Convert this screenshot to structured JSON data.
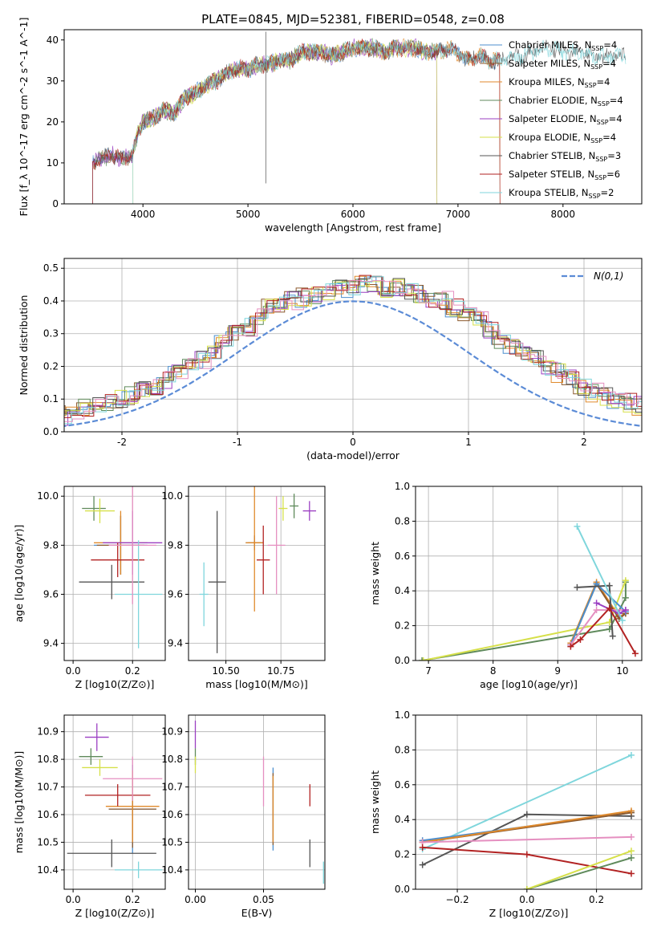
{
  "title": "PLATE=0845, MJD=52381, FIBERID=0548, z=0.08",
  "colors": {
    "Chabrier MILES": "#4c8fcf",
    "Salpeter MILES": "#8c5a2e",
    "Kroupa MILES": "#e08a2c",
    "Chabrier ELODIE": "#5f8a5b",
    "Salpeter ELODIE": "#9b3fc2",
    "Kroupa ELODIE": "#d6e04a",
    "Chabrier STELIB": "#555555",
    "Salpeter STELIB": "#b22222",
    "Kroupa STELIB": "#7fd6dc",
    "pink": "#e58fc0",
    "gauss": "#5b8bd6"
  },
  "chart_data": [
    {
      "type": "line",
      "xlabel": "wavelength [Angstrom, rest frame]",
      "ylabel": "Flux [f_λ 10^-17 erg cm^-2 s^-1 A^-1]",
      "xlim": [
        3250,
        8750
      ],
      "ylim": [
        0,
        42.5
      ],
      "xticks": [
        4000,
        5000,
        6000,
        7000,
        8000
      ],
      "yticks": [
        0,
        10,
        20,
        30,
        40
      ],
      "legend_position": "top-right",
      "legend": [
        {
          "label": "Chabrier MILES, N_SSP=4",
          "base": "Chabrier MILES, N",
          "sub": "SSP",
          "tail": "=4"
        },
        {
          "label": "Salpeter MILES, N_SSP=4",
          "base": "Salpeter MILES, N",
          "sub": "SSP",
          "tail": "=4"
        },
        {
          "label": "Kroupa MILES, N_SSP=4",
          "base": "Kroupa MILES, N",
          "sub": "SSP",
          "tail": "=4"
        },
        {
          "label": "Chabrier ELODIE, N_SSP=4",
          "base": "Chabrier ELODIE, N",
          "sub": "SSP",
          "tail": "=4"
        },
        {
          "label": "Salpeter ELODIE, N_SSP=4",
          "base": "Salpeter ELODIE, N",
          "sub": "SSP",
          "tail": "=4"
        },
        {
          "label": "Kroupa ELODIE, N_SSP=4",
          "base": "Kroupa ELODIE, N",
          "sub": "SSP",
          "tail": "=4"
        },
        {
          "label": "Chabrier STELIB, N_SSP=3",
          "base": "Chabrier STELIB, N",
          "sub": "SSP",
          "tail": "=3"
        },
        {
          "label": "Salpeter STELIB, N_SSP=6",
          "base": "Salpeter STELIB, N",
          "sub": "SSP",
          "tail": "=6"
        },
        {
          "label": "Kroupa STELIB, N_SSP=2",
          "base": "Kroupa STELIB, N",
          "sub": "SSP",
          "tail": "=2"
        }
      ],
      "spectrum": {
        "x": [
          3520,
          3600,
          3700,
          3800,
          3900,
          3950,
          4000,
          4100,
          4200,
          4300,
          4400,
          4500,
          4600,
          4700,
          4800,
          4900,
          5000,
          5100,
          5200,
          5300,
          5400,
          5500,
          5600,
          5700,
          5800,
          5900,
          6000,
          6100,
          6200,
          6300,
          6400,
          6500,
          6600,
          6700,
          6800,
          6900,
          7000,
          7100,
          7200,
          7300,
          7400,
          7500,
          7600,
          7700,
          7800,
          7900,
          8000,
          8100,
          8200,
          8300,
          8400,
          8500,
          8600
        ],
        "y": [
          10,
          11,
          12,
          11,
          12,
          17,
          20,
          21,
          23,
          22,
          26,
          27,
          29,
          30,
          32,
          33,
          33,
          34,
          34,
          35,
          35,
          37,
          37,
          37,
          36,
          37,
          38,
          38,
          38,
          37,
          38,
          38,
          38,
          37,
          37,
          38,
          37,
          35,
          36,
          35,
          35,
          36,
          36,
          37,
          38,
          38,
          37,
          37,
          37,
          36,
          36,
          36,
          36
        ]
      }
    },
    {
      "type": "histogram",
      "xlabel": "(data-model)/error",
      "ylabel": "Normed distribution",
      "xlim": [
        -2.5,
        2.5
      ],
      "ylim": [
        0,
        0.53
      ],
      "xticks": [
        -2,
        -1,
        0,
        1,
        2
      ],
      "yticks": [
        0.0,
        0.1,
        0.2,
        0.3,
        0.4,
        0.5
      ],
      "legend_position": "top-right",
      "gauss_label": "N(0,1)",
      "bin_width": 0.1,
      "profile": [
        0.02,
        0.02,
        0.03,
        0.04,
        0.04,
        0.05,
        0.06,
        0.07,
        0.08,
        0.09,
        0.1,
        0.11,
        0.13,
        0.14,
        0.16,
        0.18,
        0.2,
        0.22,
        0.25,
        0.28,
        0.3,
        0.32,
        0.35,
        0.38,
        0.39,
        0.4,
        0.41,
        0.42,
        0.43,
        0.44,
        0.44,
        0.45,
        0.45,
        0.44,
        0.44,
        0.43,
        0.42,
        0.41,
        0.4,
        0.38,
        0.36,
        0.34,
        0.31,
        0.28,
        0.26,
        0.24,
        0.22,
        0.2,
        0.18,
        0.16,
        0.14,
        0.12,
        0.11,
        0.1,
        0.09,
        0.08,
        0.07,
        0.06,
        0.05,
        0.04,
        0.03,
        0.03
      ],
      "gauss_peak": 0.399
    },
    {
      "type": "scatter",
      "name": "age-vs-metallicity",
      "xlabel": "Z [log10(Z/Z⊙)]",
      "ylabel": "age  [log10(age/yr)]",
      "xlim": [
        -0.03,
        0.31
      ],
      "ylim": [
        9.33,
        10.04
      ],
      "xticks": [
        0.0,
        0.2
      ],
      "xticklabels": [
        "0.0",
        "0.2"
      ],
      "yticks": [
        9.4,
        9.6,
        9.8,
        10.0
      ],
      "points": [
        {
          "series": "Chabrier MILES",
          "x": 0.16,
          "y": 9.8,
          "xerr": 0.09,
          "yerr": 0.12
        },
        {
          "series": "Salpeter MILES",
          "x": 0.16,
          "y": 9.8,
          "xerr": 0.08,
          "yerr": 0.12
        },
        {
          "series": "Kroupa MILES",
          "x": 0.16,
          "y": 9.81,
          "xerr": 0.09,
          "yerr": 0.13
        },
        {
          "series": "Chabrier ELODIE",
          "x": 0.07,
          "y": 9.95,
          "xerr": 0.04,
          "yerr": 0.05
        },
        {
          "series": "Salpeter ELODIE",
          "x": 0.2,
          "y": 9.81,
          "xerr": 0.1,
          "yerr": 0.13
        },
        {
          "series": "Kroupa ELODIE",
          "x": 0.09,
          "y": 9.94,
          "xerr": 0.05,
          "yerr": 0.05
        },
        {
          "series": "Chabrier STELIB",
          "x": 0.13,
          "y": 9.65,
          "xerr": 0.11,
          "yerr": 0.07
        },
        {
          "series": "Salpeter STELIB",
          "x": 0.15,
          "y": 9.74,
          "xerr": 0.09,
          "yerr": 0.07
        },
        {
          "series": "Kroupa STELIB",
          "x": 0.22,
          "y": 9.6,
          "xerr": 0.08,
          "yerr": 0.22
        },
        {
          "series": "pink",
          "x": 0.2,
          "y": 9.8,
          "xerr": 0.08,
          "yerr": 0.24
        }
      ]
    },
    {
      "type": "scatter",
      "name": "age-vs-mass",
      "xlabel": "mass [log10(M/M⊙)]",
      "ylabel": "",
      "xlim": [
        10.33,
        10.95
      ],
      "ylim": [
        9.33,
        10.04
      ],
      "xticks": [
        10.5,
        10.75
      ],
      "xticklabels": [
        "10.50",
        "10.75"
      ],
      "yticks": [
        9.4,
        9.6,
        9.8,
        10.0
      ],
      "points": [
        {
          "series": "Chabrier MILES",
          "x": 10.63,
          "y": 9.81,
          "xerr": 0.04,
          "yerr": 0.02
        },
        {
          "series": "Salpeter MILES",
          "x": 10.63,
          "y": 9.81,
          "xerr": 0.03,
          "yerr": 0.03
        },
        {
          "series": "Kroupa MILES",
          "x": 10.63,
          "y": 9.81,
          "xerr": 0.04,
          "yerr": 0.28
        },
        {
          "series": "Chabrier ELODIE",
          "x": 10.81,
          "y": 9.96,
          "xerr": 0.02,
          "yerr": 0.05
        },
        {
          "series": "Salpeter ELODIE",
          "x": 10.88,
          "y": 9.94,
          "xerr": 0.03,
          "yerr": 0.04
        },
        {
          "series": "Kroupa ELODIE",
          "x": 10.76,
          "y": 9.95,
          "xerr": 0.02,
          "yerr": 0.05
        },
        {
          "series": "Chabrier STELIB",
          "x": 10.46,
          "y": 9.65,
          "xerr": 0.04,
          "yerr": 0.29
        },
        {
          "series": "Salpeter STELIB",
          "x": 10.67,
          "y": 9.74,
          "xerr": 0.03,
          "yerr": 0.14
        },
        {
          "series": "Kroupa STELIB",
          "x": 10.4,
          "y": 9.6,
          "xerr": 0.02,
          "yerr": 0.13
        },
        {
          "series": "pink",
          "x": 10.73,
          "y": 9.8,
          "xerr": 0.04,
          "yerr": 0.2
        }
      ]
    },
    {
      "type": "line",
      "name": "mass-weight-vs-age",
      "xlabel": "age  [log10(age/yr)]",
      "ylabel": "mass weight",
      "xlim": [
        6.8,
        10.3
      ],
      "ylim": [
        0,
        1.0
      ],
      "xticks": [
        7,
        8,
        9,
        10
      ],
      "yticks": [
        0.0,
        0.2,
        0.4,
        0.6,
        0.8,
        1.0
      ],
      "series": [
        {
          "name": "Chabrier ELODIE",
          "x": [
            6.9,
            9.8,
            10.05,
            10.05
          ],
          "y": [
            0.0,
            0.18,
            0.36,
            0.45
          ]
        },
        {
          "name": "Kroupa ELODIE",
          "x": [
            6.92,
            9.8,
            10.05
          ],
          "y": [
            0.0,
            0.22,
            0.46
          ]
        },
        {
          "name": "Kroupa MILES",
          "x": [
            9.2,
            9.6,
            9.95,
            10.05
          ],
          "y": [
            0.1,
            0.45,
            0.25,
            0.27
          ]
        },
        {
          "name": "Salpeter MILES",
          "x": [
            9.2,
            9.6,
            9.95,
            10.05
          ],
          "y": [
            0.09,
            0.44,
            0.24,
            0.27
          ]
        },
        {
          "name": "Chabrier MILES",
          "x": [
            9.2,
            9.6,
            10.05
          ],
          "y": [
            0.09,
            0.44,
            0.28
          ]
        },
        {
          "name": "pink",
          "x": [
            9.2,
            9.6,
            10.05
          ],
          "y": [
            0.09,
            0.29,
            0.29
          ]
        },
        {
          "name": "Salpeter ELODIE",
          "x": [
            9.6,
            9.95,
            10.05
          ],
          "y": [
            0.33,
            0.27,
            0.29
          ]
        },
        {
          "name": "Chabrier STELIB",
          "x": [
            9.3,
            9.8,
            9.85
          ],
          "y": [
            0.42,
            0.43,
            0.14
          ]
        },
        {
          "name": "Salpeter STELIB",
          "x": [
            9.2,
            9.35,
            9.8,
            10.2
          ],
          "y": [
            0.08,
            0.12,
            0.3,
            0.04
          ]
        },
        {
          "name": "Kroupa STELIB",
          "x": [
            9.3,
            10.0
          ],
          "y": [
            0.77,
            0.23
          ]
        }
      ]
    },
    {
      "type": "scatter",
      "name": "mass-vs-metallicity",
      "xlabel": "Z [log10(Z/Z⊙)]",
      "ylabel": "mass [log10(M/M⊙)]",
      "xlim": [
        -0.03,
        0.31
      ],
      "ylim": [
        10.33,
        10.96
      ],
      "xticks": [
        0.0,
        0.2
      ],
      "xticklabels": [
        "0.0",
        "0.2"
      ],
      "yticks": [
        10.4,
        10.5,
        10.6,
        10.7,
        10.8,
        10.9
      ],
      "points": [
        {
          "series": "Chabrier MILES",
          "x": 0.2,
          "y": 10.62,
          "xerr": 0.08,
          "yerr": 0.16
        },
        {
          "series": "Salpeter MILES",
          "x": 0.2,
          "y": 10.62,
          "xerr": 0.08,
          "yerr": 0.14
        },
        {
          "series": "Kroupa MILES",
          "x": 0.2,
          "y": 10.63,
          "xerr": 0.09,
          "yerr": 0.13
        },
        {
          "series": "Chabrier ELODIE",
          "x": 0.06,
          "y": 10.81,
          "xerr": 0.04,
          "yerr": 0.03
        },
        {
          "series": "Salpeter ELODIE",
          "x": 0.08,
          "y": 10.88,
          "xerr": 0.04,
          "yerr": 0.05
        },
        {
          "series": "Kroupa ELODIE",
          "x": 0.09,
          "y": 10.77,
          "xerr": 0.06,
          "yerr": 0.03
        },
        {
          "series": "Chabrier STELIB",
          "x": 0.13,
          "y": 10.46,
          "xerr": 0.15,
          "yerr": 0.05
        },
        {
          "series": "Salpeter STELIB",
          "x": 0.15,
          "y": 10.67,
          "xerr": 0.11,
          "yerr": 0.04
        },
        {
          "series": "Kroupa STELIB",
          "x": 0.22,
          "y": 10.4,
          "xerr": 0.08,
          "yerr": 0.03
        },
        {
          "series": "pink",
          "x": 0.2,
          "y": 10.73,
          "xerr": 0.1,
          "yerr": 0.08
        }
      ]
    },
    {
      "type": "scatter",
      "name": "mass-vs-extinction",
      "xlabel": "E(B-V)",
      "ylabel": "",
      "xlim": [
        -0.005,
        0.095
      ],
      "ylim": [
        10.33,
        10.96
      ],
      "xticks": [
        0.0,
        0.05
      ],
      "xticklabels": [
        "0.00",
        "0.05"
      ],
      "yticks": [
        10.4,
        10.5,
        10.6,
        10.7,
        10.8,
        10.9
      ],
      "points": [
        {
          "series": "Chabrier MILES",
          "x": 0.057,
          "y": 10.62,
          "xerr": 0,
          "yerr": 0.15
        },
        {
          "series": "Salpeter MILES",
          "x": 0.057,
          "y": 10.62,
          "xerr": 0,
          "yerr": 0.13
        },
        {
          "series": "Kroupa MILES",
          "x": 0.057,
          "y": 10.62,
          "xerr": 0,
          "yerr": 0.12
        },
        {
          "series": "Chabrier ELODIE",
          "x": 0.0,
          "y": 10.81,
          "xerr": 0,
          "yerr": 0.03
        },
        {
          "series": "Salpeter ELODIE",
          "x": 0.0,
          "y": 10.89,
          "xerr": 0,
          "yerr": 0.05
        },
        {
          "series": "Kroupa ELODIE",
          "x": 0.0,
          "y": 10.78,
          "xerr": 0,
          "yerr": 0.03
        },
        {
          "series": "Chabrier STELIB",
          "x": 0.084,
          "y": 10.46,
          "xerr": 0,
          "yerr": 0.05
        },
        {
          "series": "Salpeter STELIB",
          "x": 0.084,
          "y": 10.67,
          "xerr": 0,
          "yerr": 0.04
        },
        {
          "series": "Kroupa STELIB",
          "x": 0.094,
          "y": 10.39,
          "xerr": 0,
          "yerr": 0.04
        },
        {
          "series": "pink",
          "x": 0.05,
          "y": 10.72,
          "xerr": 0,
          "yerr": 0.09
        }
      ]
    },
    {
      "type": "line",
      "name": "mass-weight-vs-metallicity",
      "xlabel": "Z [log10(Z/Z⊙)]",
      "ylabel": "mass weight",
      "xlim": [
        -0.32,
        0.33
      ],
      "ylim": [
        0,
        1.0
      ],
      "xticks": [
        -0.2,
        0.0,
        0.2
      ],
      "xticklabels": [
        "−0.2",
        "0.0",
        "0.2"
      ],
      "yticks": [
        0.0,
        0.2,
        0.4,
        0.6,
        0.8,
        1.0
      ],
      "series": [
        {
          "name": "Kroupa STELIB",
          "x": [
            -0.3,
            0.3
          ],
          "y": [
            0.23,
            0.77
          ]
        },
        {
          "name": "Chabrier STELIB",
          "x": [
            -0.3,
            0.0,
            0.3
          ],
          "y": [
            0.14,
            0.43,
            0.42
          ]
        },
        {
          "name": "Chabrier MILES",
          "x": [
            -0.3,
            0.3
          ],
          "y": [
            0.28,
            0.44
          ]
        },
        {
          "name": "Salpeter MILES",
          "x": [
            -0.3,
            0.3
          ],
          "y": [
            0.27,
            0.44
          ]
        },
        {
          "name": "Kroupa MILES",
          "x": [
            -0.3,
            0.3
          ],
          "y": [
            0.27,
            0.45
          ]
        },
        {
          "name": "pink",
          "x": [
            -0.3,
            0.3
          ],
          "y": [
            0.27,
            0.3
          ]
        },
        {
          "name": "Salpeter STELIB",
          "x": [
            -0.3,
            0.0,
            0.3
          ],
          "y": [
            0.24,
            0.2,
            0.09
          ]
        },
        {
          "name": "Chabrier ELODIE",
          "x": [
            0.0,
            0.3
          ],
          "y": [
            0.0,
            0.18
          ]
        },
        {
          "name": "Kroupa ELODIE",
          "x": [
            0.0,
            0.3
          ],
          "y": [
            0.0,
            0.22
          ]
        }
      ]
    }
  ]
}
